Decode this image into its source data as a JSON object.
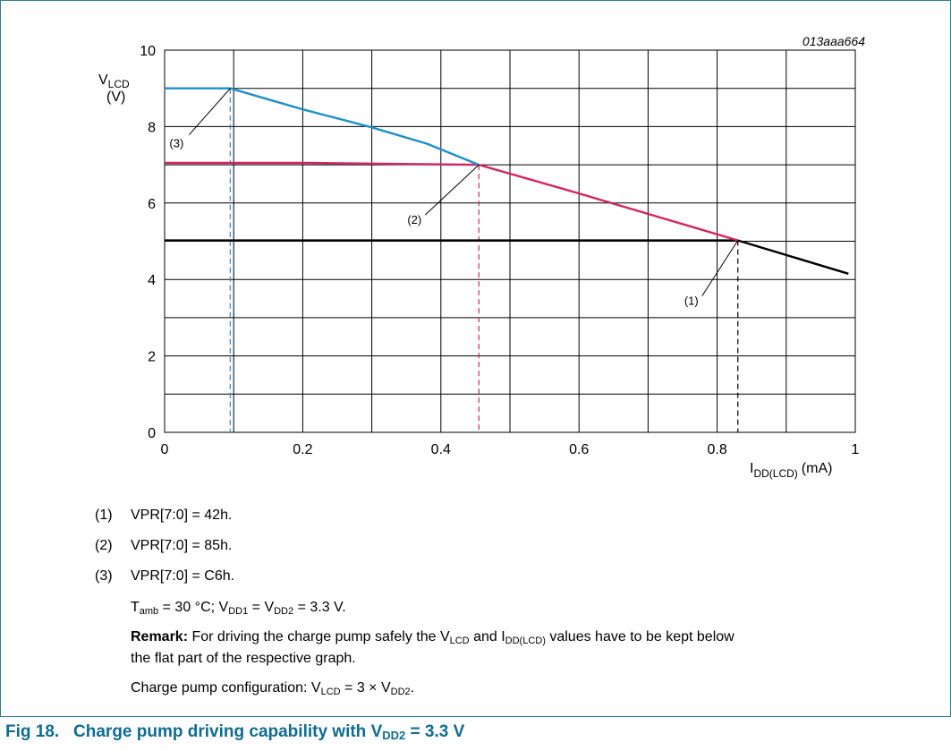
{
  "figure": {
    "id_label": "013aaa664",
    "title_prefix": "Fig 18.",
    "title_main": "Charge pump driving capability with V",
    "title_sub": "DD2",
    "title_tail": " = 3.3 V"
  },
  "chart_data": {
    "type": "line",
    "ylabel_main": "V",
    "ylabel_sub": "LCD",
    "ylabel_unit": "(V)",
    "xlabel_main": "I",
    "xlabel_sub": "DD(LCD)",
    "xlabel_unit": "(mA)",
    "xlim": [
      0,
      1
    ],
    "ylim": [
      0,
      10
    ],
    "xticks": [
      0,
      0.2,
      0.4,
      0.6,
      0.8,
      1
    ],
    "xtick_labels": [
      "0",
      "0.2",
      "0.4",
      "0.6",
      "0.8",
      "1"
    ],
    "yticks": [
      0,
      2,
      4,
      6,
      8,
      10
    ],
    "ytick_labels": [
      "0",
      "2",
      "4",
      "6",
      "8",
      "10"
    ],
    "grid": true,
    "series": [
      {
        "name": "(1)",
        "color": "#000000",
        "points": [
          [
            0,
            5.02
          ],
          [
            0.4,
            5.02
          ],
          [
            0.83,
            5.02
          ],
          [
            0.99,
            4.15
          ]
        ],
        "marker_x": 0.83,
        "label": "(1)"
      },
      {
        "name": "(2)",
        "color": "#d4245f",
        "points": [
          [
            0,
            7.05
          ],
          [
            0.2,
            7.05
          ],
          [
            0.455,
            7.0
          ],
          [
            0.6,
            6.25
          ],
          [
            0.83,
            5.02
          ]
        ],
        "marker_x": 0.455,
        "label": "(2)"
      },
      {
        "name": "(3)",
        "color": "#1f8fc9",
        "points": [
          [
            0,
            9.0
          ],
          [
            0.095,
            9.0
          ],
          [
            0.2,
            8.45
          ],
          [
            0.3,
            7.98
          ],
          [
            0.38,
            7.55
          ],
          [
            0.455,
            7.0
          ]
        ],
        "marker_x": 0.095,
        "label": "(3)"
      }
    ]
  },
  "notes": [
    {
      "num": "(1)",
      "text": "VPR[7:0] = 42h."
    },
    {
      "num": "(2)",
      "text": "VPR[7:0] = 85h."
    },
    {
      "num": "(3)",
      "text": "VPR[7:0] = C6h."
    }
  ],
  "conditions": {
    "t": "T",
    "t_sub": "amb",
    "t_val": " = 30 °C; V",
    "vdd1_sub": "DD1",
    "mid": " = V",
    "vdd2_sub": "DD2",
    "end": " = 3.3 V."
  },
  "remark": {
    "label": "Remark:",
    "a": " For driving the charge pump safely the V",
    "a_sub": "LCD",
    "b": " and I",
    "b_sub": "DD(LCD)",
    "c": " values have to be kept below",
    "line2": "the flat part of the respective graph."
  },
  "config": {
    "a": "Charge pump configuration: V",
    "a_sub": "LCD",
    "b": " = 3 × V",
    "b_sub": "DD2",
    "c": "."
  }
}
